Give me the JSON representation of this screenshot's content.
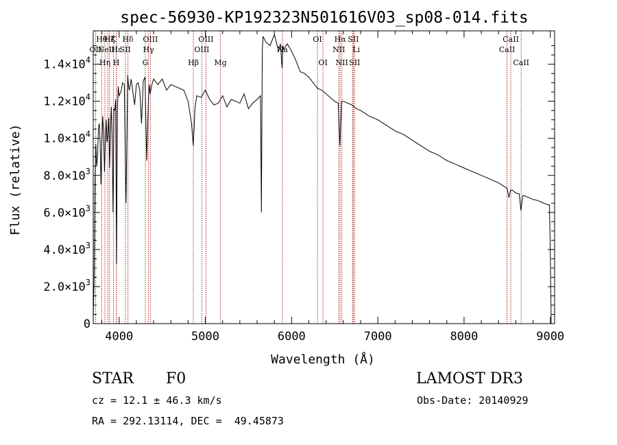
{
  "chart_data": {
    "type": "line",
    "title": "spec-56930-KP192323N501616V03_sp08-014.fits",
    "xlabel": "Wavelength (Å)",
    "ylabel": "Flux (relative)",
    "xlim": [
      3700,
      9050
    ],
    "ylim": [
      0,
      15800
    ],
    "x_ticks": [
      4000,
      5000,
      6000,
      7000,
      8000,
      9000
    ],
    "y_ticks": [
      {
        "value": 0,
        "mant": "0",
        "exp": ""
      },
      {
        "value": 2000,
        "mant": "2.0×10",
        "exp": "3"
      },
      {
        "value": 4000,
        "mant": "4.0×10",
        "exp": "3"
      },
      {
        "value": 6000,
        "mant": "6.0×10",
        "exp": "3"
      },
      {
        "value": 8000,
        "mant": "8.0×10",
        "exp": "3"
      },
      {
        "value": 10000,
        "mant": "1.0×10",
        "exp": "4"
      },
      {
        "value": 12000,
        "mant": "1.2×10",
        "exp": "4"
      },
      {
        "value": 14000,
        "mant": "1.4×10",
        "exp": "4"
      }
    ],
    "series": [
      {
        "name": "flux",
        "color": "#000000",
        "x": [
          3700,
          3710,
          3720,
          3730,
          3740,
          3750,
          3760,
          3770,
          3780,
          3790,
          3800,
          3810,
          3820,
          3830,
          3840,
          3850,
          3860,
          3870,
          3880,
          3890,
          3900,
          3910,
          3920,
          3930,
          3940,
          3950,
          3960,
          3970,
          3980,
          3990,
          4000,
          4020,
          4040,
          4060,
          4080,
          4100,
          4110,
          4120,
          4140,
          4160,
          4180,
          4200,
          4220,
          4240,
          4260,
          4280,
          4300,
          4320,
          4340,
          4350,
          4360,
          4380,
          4400,
          4450,
          4500,
          4550,
          4600,
          4650,
          4700,
          4750,
          4800,
          4840,
          4860,
          4880,
          4900,
          4950,
          5000,
          5050,
          5100,
          5150,
          5200,
          5250,
          5300,
          5350,
          5400,
          5450,
          5500,
          5550,
          5600,
          5640,
          5650,
          5660,
          5670,
          5700,
          5750,
          5800,
          5850,
          5870,
          5890,
          5900,
          5910,
          5950,
          6000,
          6050,
          6100,
          6150,
          6200,
          6250,
          6300,
          6350,
          6400,
          6450,
          6500,
          6540,
          6560,
          6580,
          6600,
          6650,
          6700,
          6750,
          6800,
          6900,
          7000,
          7100,
          7200,
          7300,
          7400,
          7500,
          7600,
          7700,
          7800,
          7900,
          8000,
          8100,
          8200,
          8300,
          8400,
          8450,
          8500,
          8520,
          8540,
          8560,
          8600,
          8640,
          8660,
          8680,
          8700,
          8750,
          8800,
          8850,
          8900,
          8950,
          8980,
          8990,
          9000,
          9010
        ],
        "y": [
          300,
          2500,
          7600,
          9700,
          8500,
          9000,
          10500,
          10800,
          9800,
          7500,
          9800,
          11200,
          10300,
          8200,
          9600,
          11000,
          9800,
          10200,
          11100,
          8400,
          10500,
          11700,
          9900,
          6000,
          11600,
          11500,
          12100,
          3200,
          11500,
          12800,
          12300,
          12500,
          13000,
          12900,
          6500,
          13400,
          12800,
          12600,
          13200,
          12500,
          11800,
          12900,
          13000,
          12600,
          10800,
          13100,
          13300,
          8800,
          12100,
          12900,
          12400,
          12900,
          13200,
          12900,
          13200,
          12600,
          12900,
          12800,
          12700,
          12600,
          12000,
          10800,
          9600,
          11600,
          12300,
          12200,
          12600,
          12100,
          11800,
          11900,
          12300,
          11700,
          12100,
          12000,
          11900,
          12400,
          11600,
          11900,
          12100,
          12300,
          6000,
          14800,
          15500,
          15200,
          15000,
          15600,
          14700,
          15100,
          13800,
          15000,
          14800,
          15100,
          14700,
          14200,
          13600,
          13500,
          13300,
          13000,
          12700,
          12600,
          12400,
          12200,
          12000,
          11900,
          9600,
          12000,
          12000,
          11900,
          11800,
          11600,
          11500,
          11200,
          11000,
          10700,
          10400,
          10200,
          9900,
          9600,
          9300,
          9100,
          8800,
          8600,
          8400,
          8200,
          8000,
          7800,
          7600,
          7450,
          7300,
          6800,
          7200,
          7200,
          7050,
          7000,
          6100,
          6900,
          6900,
          6800,
          6700,
          6650,
          6550,
          6450,
          6400,
          6400,
          3900,
          0
        ]
      }
    ],
    "emission_lines": [
      {
        "wave": 3727,
        "labels": [
          {
            "text": "OII",
            "row": 2,
            "anchor": "middle"
          }
        ]
      },
      {
        "wave": 3798,
        "labels": [
          {
            "text": "Hθ",
            "row": 1,
            "anchor": "middle"
          }
        ]
      },
      {
        "wave": 3835,
        "labels": [
          {
            "text": "Hη",
            "row": 3,
            "anchor": "middle"
          }
        ]
      },
      {
        "wave": 3869,
        "labels": [
          {
            "text": "NeIII",
            "row": 2,
            "anchor": "middle"
          }
        ]
      },
      {
        "wave": 3889,
        "labels": [
          {
            "text": "Hζ",
            "row": 1,
            "anchor": "middle"
          }
        ]
      },
      {
        "wave": 3934,
        "labels": [
          {
            "text": "K",
            "row": 1,
            "anchor": "middle"
          }
        ]
      },
      {
        "wave": 3968,
        "labels": [
          {
            "text": "H",
            "row": 3,
            "anchor": "middle"
          }
        ]
      },
      {
        "wave": 3970,
        "labels": [
          {
            "text": "Hε",
            "row": 2,
            "anchor": "middle"
          }
        ]
      },
      {
        "wave": 4072,
        "labels": [
          {
            "text": "SII",
            "row": 2,
            "anchor": "middle"
          }
        ]
      },
      {
        "wave": 4102,
        "labels": [
          {
            "text": "Hδ",
            "row": 1,
            "anchor": "middle"
          }
        ]
      },
      {
        "wave": 4304,
        "labels": [
          {
            "text": "G",
            "row": 3,
            "anchor": "middle"
          }
        ]
      },
      {
        "wave": 4341,
        "labels": [
          {
            "text": "Hγ",
            "row": 2,
            "anchor": "middle"
          }
        ]
      },
      {
        "wave": 4363,
        "labels": [
          {
            "text": "OIII",
            "row": 1,
            "anchor": "middle"
          }
        ]
      },
      {
        "wave": 4861,
        "labels": [
          {
            "text": "Hβ",
            "row": 3,
            "anchor": "middle"
          }
        ]
      },
      {
        "wave": 4959,
        "labels": [
          {
            "text": "OIII",
            "row": 2,
            "anchor": "middle"
          }
        ]
      },
      {
        "wave": 5007,
        "labels": [
          {
            "text": "OIII",
            "row": 1,
            "anchor": "middle"
          }
        ]
      },
      {
        "wave": 5175,
        "labels": [
          {
            "text": "Mg",
            "row": 3,
            "anchor": "middle"
          }
        ]
      },
      {
        "wave": 5893,
        "labels": [
          {
            "text": "Na",
            "row": 2,
            "anchor": "middle"
          }
        ]
      },
      {
        "wave": 6300,
        "labels": [
          {
            "text": "OI",
            "row": 1,
            "anchor": "middle"
          }
        ]
      },
      {
        "wave": 6364,
        "labels": [
          {
            "text": "OI",
            "row": 3,
            "anchor": "middle"
          }
        ]
      },
      {
        "wave": 6548,
        "labels": [
          {
            "text": "NII",
            "row": 2,
            "anchor": "middle"
          }
        ]
      },
      {
        "wave": 6563,
        "labels": [
          {
            "text": "Hα",
            "row": 1,
            "anchor": "middle"
          }
        ]
      },
      {
        "wave": 6583,
        "labels": [
          {
            "text": "NII",
            "row": 3,
            "anchor": "middle"
          }
        ]
      },
      {
        "wave": 6707,
        "labels": [
          {
            "text": "Li",
            "row": 2,
            "anchor": "start"
          }
        ]
      },
      {
        "wave": 6716,
        "labels": [
          {
            "text": "SII",
            "row": 1,
            "anchor": "middle"
          }
        ]
      },
      {
        "wave": 6731,
        "labels": [
          {
            "text": "SII",
            "row": 3,
            "anchor": "middle"
          }
        ]
      },
      {
        "wave": 8498,
        "labels": [
          {
            "text": "CaII",
            "row": 2,
            "anchor": "middle"
          }
        ]
      },
      {
        "wave": 8542,
        "labels": [
          {
            "text": "CaII",
            "row": 1,
            "anchor": "middle"
          }
        ]
      },
      {
        "wave": 8662,
        "labels": [
          {
            "text": "CaII",
            "row": 3,
            "anchor": "middle"
          }
        ]
      }
    ],
    "line_color": "#b22222"
  },
  "info": {
    "class_label": "STAR",
    "subclass": "F0",
    "survey": "LAMOST DR3",
    "cz": "cz = 12.1 ± 46.3 km/s",
    "obs_date": "Obs-Date: 20140929",
    "coords": "RA = 292.13114, DEC =  49.45873"
  }
}
